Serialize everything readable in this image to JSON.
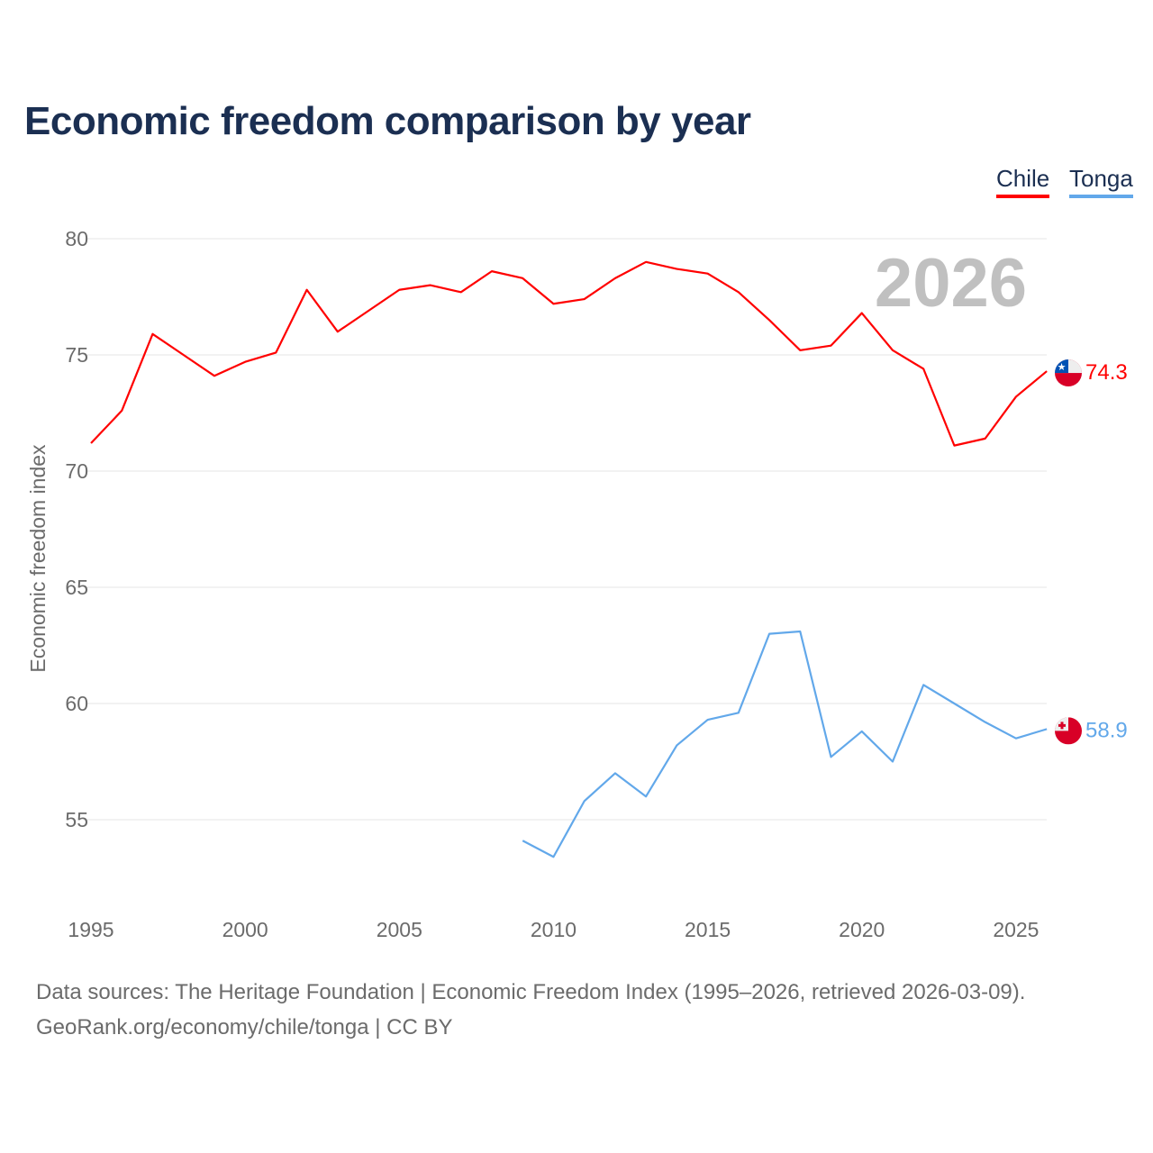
{
  "chart_data": {
    "type": "line",
    "title": "Economic freedom comparison by year",
    "xlabel": "",
    "ylabel": "Economic freedom index",
    "xlim": [
      1995,
      2026
    ],
    "ylim": [
      52,
      80
    ],
    "yticks": [
      55,
      60,
      65,
      70,
      75,
      80
    ],
    "xticks": [
      1995,
      2000,
      2005,
      2010,
      2015,
      2020,
      2025
    ],
    "grid": true,
    "legend_position": "top-right",
    "year_label": "2026",
    "series": [
      {
        "name": "Chile",
        "color": "#ff0000",
        "end_label": "74.3",
        "x": [
          1995,
          1996,
          1997,
          1998,
          1999,
          2000,
          2001,
          2002,
          2003,
          2004,
          2005,
          2006,
          2007,
          2008,
          2009,
          2010,
          2011,
          2012,
          2013,
          2014,
          2015,
          2016,
          2017,
          2018,
          2019,
          2020,
          2021,
          2022,
          2023,
          2024,
          2025,
          2026
        ],
        "values": [
          71.2,
          72.6,
          75.9,
          75.0,
          74.1,
          74.7,
          75.1,
          77.8,
          76.0,
          76.9,
          77.8,
          78.0,
          77.7,
          78.6,
          78.3,
          77.2,
          77.4,
          78.3,
          79.0,
          78.7,
          78.5,
          77.7,
          76.5,
          75.2,
          75.4,
          76.8,
          75.2,
          74.4,
          71.1,
          71.4,
          73.2,
          74.3
        ]
      },
      {
        "name": "Tonga",
        "color": "#62a8ea",
        "end_label": "58.9",
        "x": [
          2009,
          2010,
          2011,
          2012,
          2013,
          2014,
          2015,
          2016,
          2017,
          2018,
          2019,
          2020,
          2021,
          2022,
          2023,
          2024,
          2025,
          2026
        ],
        "values": [
          54.1,
          53.4,
          55.8,
          57.0,
          56.0,
          58.2,
          59.3,
          59.6,
          63.0,
          63.1,
          57.7,
          58.8,
          57.5,
          60.8,
          60.0,
          59.2,
          58.5,
          58.9
        ]
      }
    ]
  },
  "source_line1": "Data sources: The Heritage Foundation | Economic Freedom Index (1995–2026, retrieved 2026-03-09).",
  "source_line2": "GeoRank.org/economy/chile/tonga | CC BY"
}
